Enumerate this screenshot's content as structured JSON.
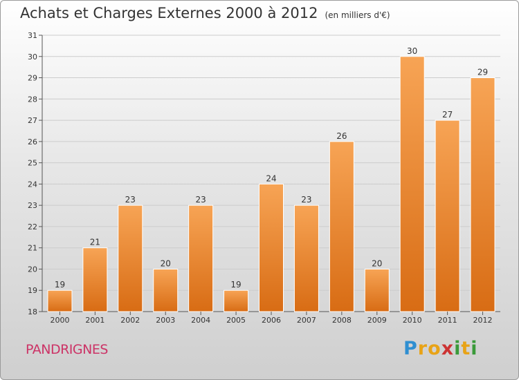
{
  "header": {
    "title": "Achats et Charges Externes 2000 à 2012",
    "unit": "(en milliers d'€)"
  },
  "footer": {
    "commune": "PANDRIGNES",
    "logo_text": "Proxiti",
    "logo_letters": [
      "P",
      "r",
      "o",
      "x",
      "i",
      "t",
      "i"
    ],
    "logo_colors": [
      "#2f8fd1",
      "#e8a317",
      "#e8a317",
      "#cc3333",
      "#3a9a3a",
      "#e8a317",
      "#3a9a3a"
    ]
  },
  "colors": {
    "bar_top": "#f7a455",
    "bar_bottom": "#d86c14",
    "axis": "#555555",
    "grid": "#cccccc",
    "commune": "#cc3366"
  },
  "chart_data": {
    "type": "bar",
    "title": "Achats et Charges Externes 2000 à 2012",
    "subtitle": "(en milliers d'€)",
    "categories": [
      "2000",
      "2001",
      "2002",
      "2003",
      "2004",
      "2005",
      "2006",
      "2007",
      "2008",
      "2009",
      "2010",
      "2011",
      "2012"
    ],
    "values": [
      19,
      21,
      23,
      20,
      23,
      19,
      24,
      23,
      26,
      20,
      30,
      27,
      29
    ],
    "ylim": [
      18,
      31
    ],
    "yticks": [
      18,
      19,
      20,
      21,
      22,
      23,
      24,
      25,
      26,
      27,
      28,
      29,
      30,
      31
    ],
    "xlabel": "",
    "ylabel": "",
    "grid": true,
    "data_labels": true
  }
}
